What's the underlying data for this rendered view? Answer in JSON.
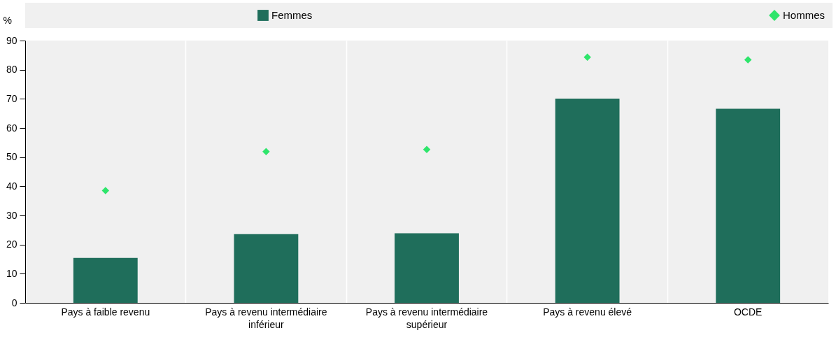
{
  "chart_data": {
    "type": "bar",
    "ylabel": "%",
    "categories": [
      "Pays à faible revenu",
      "Pays à revenu intermédiaire inférieur",
      "Pays à revenu intermédiaire supérieur",
      "Pays à revenu élevé",
      "OCDE"
    ],
    "series": [
      {
        "name": "Femmes",
        "type": "bar",
        "color": "#1f6e5b",
        "values": [
          15.4,
          23.6,
          23.9,
          70.1,
          66.6
        ]
      },
      {
        "name": "Hommes",
        "type": "scatter",
        "marker": "diamond",
        "color": "#2ee56b",
        "values": [
          38.5,
          51.9,
          52.6,
          84.3,
          83.4
        ]
      }
    ],
    "ylim": [
      0,
      90
    ],
    "yticks": [
      0,
      10,
      20,
      30,
      40,
      50,
      60,
      70,
      80,
      90
    ],
    "grid": "x",
    "legend": "top"
  }
}
